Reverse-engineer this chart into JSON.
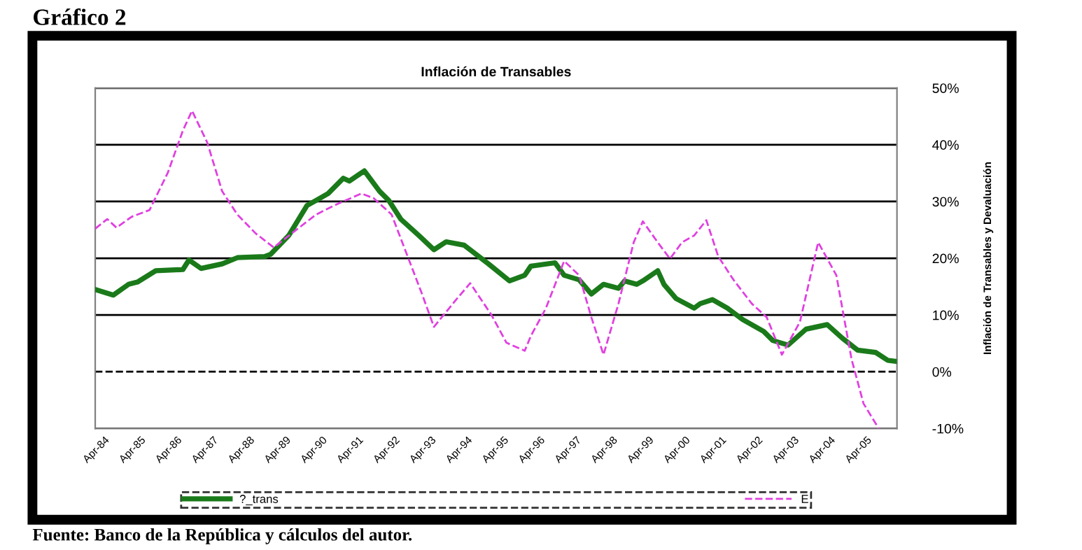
{
  "chart_data": {
    "type": "line",
    "title": "Inflación de Transables",
    "ylabel": "Inflación de Transables y Devaluación",
    "annotations": [
      "Gráfico 2",
      "Fuente: Banco de la República y cálculos del autor."
    ],
    "xlim": [
      "1984-01",
      "2006-02"
    ],
    "xticks": [
      {
        "value": "1984-04",
        "label": "Apr-84"
      },
      {
        "value": "1985-04",
        "label": "Apr-85"
      },
      {
        "value": "1986-04",
        "label": "Apr-86"
      },
      {
        "value": "1987-04",
        "label": "Apr-87"
      },
      {
        "value": "1988-04",
        "label": "Apr-88"
      },
      {
        "value": "1989-04",
        "label": "Apr-89"
      },
      {
        "value": "1990-04",
        "label": "Apr-90"
      },
      {
        "value": "1991-04",
        "label": "Apr-91"
      },
      {
        "value": "1992-04",
        "label": "Apr-92"
      },
      {
        "value": "1993-04",
        "label": "Apr-93"
      },
      {
        "value": "1994-04",
        "label": "Apr-94"
      },
      {
        "value": "1995-04",
        "label": "Apr-95"
      },
      {
        "value": "1996-04",
        "label": "Apr-96"
      },
      {
        "value": "1997-04",
        "label": "Apr-97"
      },
      {
        "value": "1998-04",
        "label": "Apr-98"
      },
      {
        "value": "1999-04",
        "label": "Apr-99"
      },
      {
        "value": "2000-04",
        "label": "Apr-00"
      },
      {
        "value": "2001-04",
        "label": "Apr-01"
      },
      {
        "value": "2002-04",
        "label": "Apr-02"
      },
      {
        "value": "2003-04",
        "label": "Apr-03"
      },
      {
        "value": "2004-04",
        "label": "Apr-04"
      },
      {
        "value": "2005-04",
        "label": "Apr-05"
      }
    ],
    "ylim": [
      -10,
      50
    ],
    "yticks": [
      {
        "value": -10,
        "label": "-10%"
      },
      {
        "value": 0,
        "label": "0%"
      },
      {
        "value": 10,
        "label": "10%"
      },
      {
        "value": 20,
        "label": "20%"
      },
      {
        "value": 30,
        "label": "30%"
      },
      {
        "value": 40,
        "label": "40%"
      },
      {
        "value": 50,
        "label": "50%"
      }
    ],
    "grid": "y",
    "legend": "bottom",
    "ref_lines": [
      {
        "axis": "y",
        "value": 0,
        "line_style": "dashed",
        "color": "#000000"
      }
    ],
    "series": [
      {
        "name": "?_trans",
        "color": "#1a7a1a",
        "line_style": "solid",
        "x": [
          "1984-01",
          "1984-07",
          "1984-12",
          "1985-03",
          "1985-09",
          "1986-06",
          "1986-08",
          "1986-12",
          "1987-07",
          "1987-12",
          "1988-09",
          "1988-11",
          "1989-05",
          "1989-11",
          "1990-02",
          "1990-06",
          "1990-11",
          "1991-01",
          "1991-06",
          "1991-11",
          "1992-02",
          "1992-06",
          "1992-12",
          "1993-05",
          "1993-09",
          "1994-03",
          "1994-11",
          "1995-06",
          "1995-11",
          "1996-01",
          "1996-09",
          "1996-12",
          "1997-05",
          "1997-09",
          "1998-01",
          "1998-06",
          "1998-08",
          "1998-12",
          "1999-02",
          "1999-07",
          "1999-09",
          "2000-01",
          "2000-07",
          "2000-09",
          "2001-01",
          "2001-06",
          "2001-11",
          "2002-06",
          "2002-09",
          "2003-02",
          "2003-08",
          "2004-03",
          "2004-08",
          "2005-01",
          "2005-07",
          "2005-11",
          "2006-02"
        ],
        "values": [
          14.5,
          13.5,
          15.4,
          15.8,
          17.8,
          18.0,
          19.7,
          18.2,
          19.0,
          20.1,
          20.3,
          20.7,
          24.0,
          29.3,
          30.2,
          31.4,
          34.1,
          33.6,
          35.4,
          31.8,
          30.2,
          26.9,
          24.0,
          21.5,
          22.9,
          22.3,
          19.0,
          16.0,
          17.0,
          18.6,
          19.2,
          17.0,
          16.2,
          13.7,
          15.4,
          14.7,
          16.0,
          15.4,
          16.0,
          17.8,
          15.4,
          12.9,
          11.2,
          12.0,
          12.7,
          11.2,
          9.2,
          7.1,
          5.5,
          4.7,
          7.5,
          8.3,
          5.9,
          3.8,
          3.4,
          2.0,
          1.8
        ]
      },
      {
        "name": "E",
        "color": "#e040e0",
        "line_style": "dashed",
        "x": [
          "1984-01",
          "1984-05",
          "1984-08",
          "1985-01",
          "1985-07",
          "1986-01",
          "1986-06",
          "1986-09",
          "1987-02",
          "1987-07",
          "1987-12",
          "1988-06",
          "1988-12",
          "1989-07",
          "1990-02",
          "1990-08",
          "1991-05",
          "1991-09",
          "1992-03",
          "1992-08",
          "1993-01",
          "1993-05",
          "1993-12",
          "1994-05",
          "1994-12",
          "1995-05",
          "1995-11",
          "1996-01",
          "1996-06",
          "1996-12",
          "1997-05",
          "1997-09",
          "1998-01",
          "1998-06",
          "1998-11",
          "1999-02",
          "1999-07",
          "1999-11",
          "2000-03",
          "2000-07",
          "2000-11",
          "2001-03",
          "2001-08",
          "2002-02",
          "2002-07",
          "2002-12",
          "2003-06",
          "2003-12",
          "2004-06",
          "2004-11",
          "2005-03",
          "2005-08"
        ],
        "values": [
          25.2,
          26.9,
          25.4,
          27.3,
          28.5,
          35.1,
          42.5,
          46.0,
          40.4,
          31.8,
          27.7,
          24.4,
          21.9,
          24.8,
          27.7,
          29.3,
          31.4,
          30.6,
          27.7,
          20.7,
          13.7,
          7.9,
          12.5,
          15.6,
          10.0,
          5.1,
          3.7,
          6.3,
          11.2,
          19.5,
          17.0,
          9.6,
          3.0,
          12.0,
          22.8,
          26.5,
          22.8,
          19.9,
          22.8,
          24.0,
          26.7,
          20.3,
          16.2,
          12.0,
          9.6,
          3.0,
          8.8,
          22.8,
          17.0,
          2.2,
          -5.6,
          -10.0
        ]
      }
    ]
  }
}
